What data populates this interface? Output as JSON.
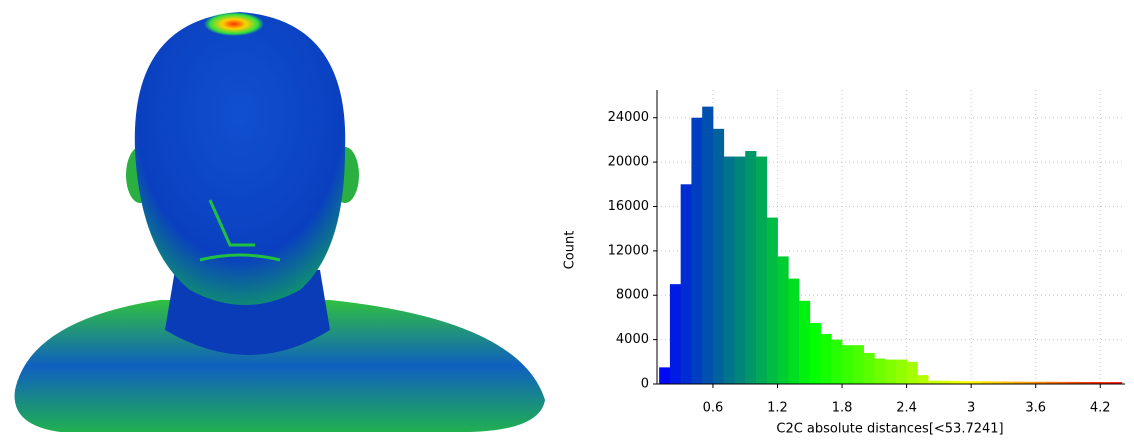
{
  "chart_data": {
    "type": "histogram",
    "x_label": "C2C absolute distances[<53.7241]",
    "y_label": "Count",
    "bins": [
      0.1,
      0.2,
      0.3,
      0.4,
      0.5,
      0.6,
      0.7,
      0.8,
      0.9,
      1.0,
      1.1,
      1.2,
      1.3,
      1.4,
      1.5,
      1.6,
      1.7,
      1.8,
      1.9,
      2.0,
      2.1,
      2.2,
      2.3,
      2.4,
      2.5,
      2.6,
      2.7,
      2.8,
      2.9,
      3.0,
      3.1,
      3.2,
      3.3,
      3.4,
      3.5,
      3.6,
      3.7,
      3.8,
      3.9,
      4.0,
      4.1,
      4.2,
      4.3,
      4.4
    ],
    "values": [
      1500,
      9000,
      18000,
      24000,
      25000,
      23000,
      20500,
      20500,
      21000,
      20500,
      15000,
      11500,
      9500,
      7500,
      5500,
      4500,
      4000,
      3500,
      3500,
      2800,
      2300,
      2200,
      2200,
      2000,
      800,
      300,
      300,
      280,
      260,
      250,
      240,
      230,
      220,
      210,
      200,
      200,
      200,
      190,
      190,
      180,
      180,
      170,
      170
    ],
    "colorscale": [
      "#0000ff",
      "#00ff00",
      "#ffff00",
      "#ff0000"
    ],
    "xlim": [
      0.08,
      4.43
    ],
    "ylim": [
      0,
      26500
    ],
    "xticks": [
      0.6,
      1.2,
      1.8,
      2.4,
      3,
      3.6,
      4.2
    ],
    "yticks": [
      0,
      4000,
      8000,
      12000,
      16000,
      20000,
      24000
    ],
    "grid": true
  }
}
